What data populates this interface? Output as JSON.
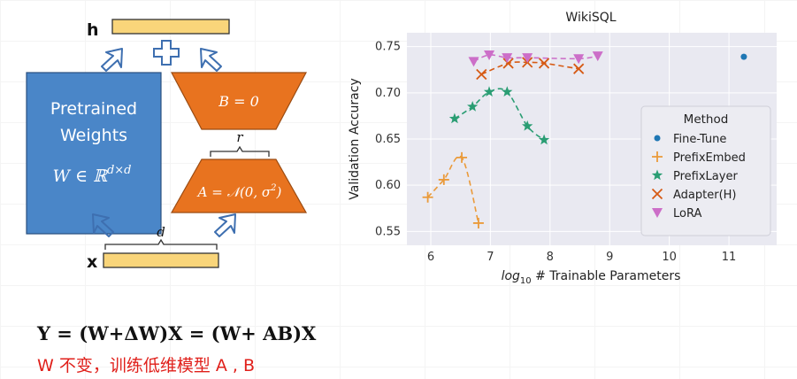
{
  "diagram": {
    "h_label": "h",
    "x_label": "x",
    "plus_symbol": "+",
    "pretrained_line1": "Pretrained",
    "pretrained_line2": "Weights",
    "pretrained_formula": "W ∈ ℝ",
    "pretrained_formula_sup": "d×d",
    "b_label": "B = 0",
    "a_label": "A = 𝒩(0, σ",
    "a_label_sup": "2",
    "a_label_close": ")",
    "r_label": "r",
    "d_label": "d",
    "colors": {
      "blue": "#4a86c8",
      "orange": "#e8731f",
      "yellow": "#f9d57a"
    }
  },
  "chart_data": {
    "type": "scatter",
    "title": "WikiSQL",
    "xlabel_prefix": "log",
    "xlabel_sub": "10",
    "xlabel_rest": " # Trainable Parameters",
    "ylabel": "Validation Accuracy",
    "xlim": [
      5.6,
      11.8
    ],
    "ylim": [
      0.535,
      0.765
    ],
    "xticks": [
      6,
      7,
      8,
      9,
      10,
      11
    ],
    "yticks": [
      0.55,
      0.6,
      0.65,
      0.7,
      0.75
    ],
    "ytick_labels": [
      "0.55",
      "0.60",
      "0.65",
      "0.70",
      "0.75"
    ],
    "grid": true,
    "legend": {
      "title": "Method",
      "position": "center-right"
    },
    "series": [
      {
        "name": "Fine-Tune",
        "marker": "circle",
        "color": "#1f77b4",
        "curve": false,
        "x": [
          11.25
        ],
        "y": [
          0.739
        ]
      },
      {
        "name": "PrefixEmbed",
        "marker": "plus",
        "color": "#ea9a3a",
        "curve": true,
        "x": [
          5.95,
          6.22,
          6.52,
          6.8
        ],
        "y": [
          0.587,
          0.606,
          0.63,
          0.559
        ]
      },
      {
        "name": "PrefixLayer",
        "marker": "star",
        "color": "#2a9d73",
        "curve": true,
        "x": [
          6.4,
          6.7,
          6.98,
          7.28,
          7.62,
          7.9
        ],
        "y": [
          0.672,
          0.685,
          0.701,
          0.701,
          0.664,
          0.649
        ]
      },
      {
        "name": "Adapter(H)",
        "marker": "x",
        "color": "#d65a14",
        "curve": true,
        "x": [
          6.85,
          7.3,
          7.62,
          7.9,
          8.48
        ],
        "y": [
          0.72,
          0.732,
          0.733,
          0.732,
          0.726
        ]
      },
      {
        "name": "LoRA",
        "marker": "triangle",
        "color": "#cc6ec8",
        "curve": true,
        "x": [
          6.72,
          6.98,
          7.28,
          7.62,
          8.48,
          8.8
        ],
        "y": [
          0.734,
          0.741,
          0.738,
          0.738,
          0.737,
          0.74
        ]
      }
    ]
  },
  "caption": {
    "equation": "Y = (W+ΔW)X = (W+ AB)X",
    "note": "W 不变，训练低维模型 A , B"
  }
}
